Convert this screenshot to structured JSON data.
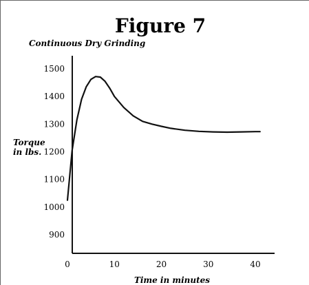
{
  "chart_data": {
    "type": "line",
    "title": "Figure 7",
    "subtitle": "Continuous Dry Grinding",
    "xlabel": "Time in minutes",
    "ylabel": [
      "Torque",
      "in lbs."
    ],
    "xlim": [
      0,
      42
    ],
    "ylim": [
      820,
      1550
    ],
    "x_ticks": [
      0,
      10,
      20,
      30,
      40
    ],
    "y_ticks": [
      900,
      1000,
      1100,
      1200,
      1300,
      1400,
      1500
    ],
    "grid": false,
    "series": [
      {
        "x": [
          0,
          1,
          2,
          3,
          4,
          5,
          6,
          7,
          8,
          9,
          10,
          12,
          14,
          16,
          18,
          20,
          22,
          25,
          28,
          31,
          34,
          37,
          40,
          41
        ],
        "y": [
          1025,
          1205,
          1315,
          1390,
          1435,
          1462,
          1472,
          1470,
          1455,
          1430,
          1400,
          1360,
          1330,
          1310,
          1300,
          1292,
          1285,
          1278,
          1274,
          1272,
          1271,
          1272,
          1273,
          1273
        ]
      }
    ]
  },
  "colors": {
    "line": "#111111",
    "background": "#ffffff",
    "axis": "#111111"
  }
}
